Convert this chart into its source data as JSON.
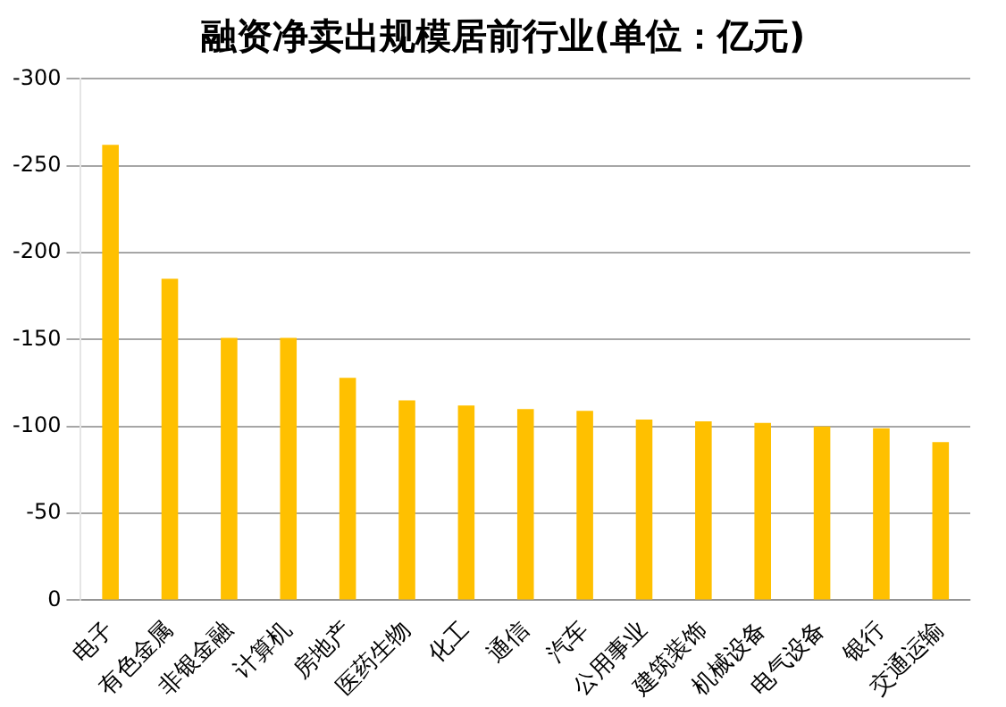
{
  "chart_data": {
    "type": "bar",
    "title": "融资净卖出规模居前行业(单位：亿元)",
    "categories": [
      "电子",
      "有色金属",
      "非银金融",
      "计算机",
      "房地产",
      "医药生物",
      "化工",
      "通信",
      "汽车",
      "公用事业",
      "建筑装饰",
      "机械设备",
      "电气设备",
      "银行",
      "交通运输"
    ],
    "values": [
      -262,
      -185,
      -151,
      -151,
      -128,
      -115,
      -112,
      -110,
      -109,
      -104,
      -103,
      -102,
      -100,
      -99,
      -91
    ],
    "color": "#ffc000",
    "ylim": [
      0,
      -300
    ],
    "yticks": [
      0,
      -50,
      -100,
      -150,
      -200,
      -250,
      -300
    ],
    "grid": "y",
    "legend": false
  }
}
